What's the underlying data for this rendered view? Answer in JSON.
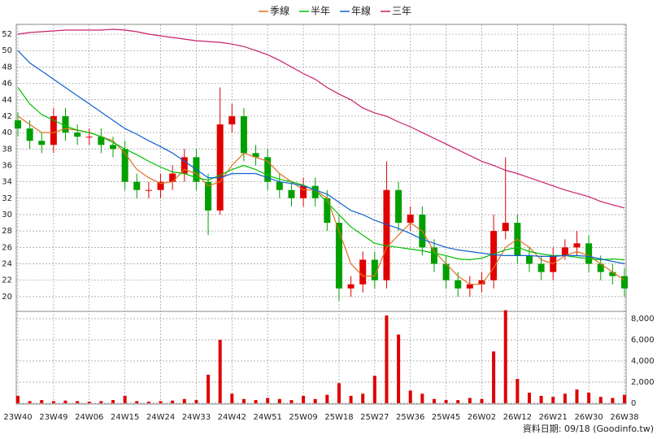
{
  "chart_data": {
    "type": "candlestick",
    "categories": [
      "23W40",
      null,
      null,
      "23W49",
      null,
      null,
      "24W06",
      null,
      null,
      "24W15",
      null,
      null,
      "24W24",
      null,
      null,
      "24W33",
      null,
      null,
      "24W42",
      null,
      null,
      "24W51",
      null,
      null,
      "25W09",
      null,
      null,
      "25W18",
      null,
      null,
      "25W27",
      null,
      null,
      "25W36",
      null,
      null,
      "25W45",
      null,
      null,
      "26W02",
      null,
      null,
      "26W12",
      null,
      null,
      "26W21",
      null,
      null,
      "26W30",
      null,
      null,
      "26W38"
    ],
    "open": [
      41.5,
      40.5,
      39,
      38.5,
      42,
      40,
      39.5,
      39.5,
      38.5,
      38,
      34,
      33,
      33,
      34,
      35,
      37,
      34,
      30.5,
      41,
      42,
      37.5,
      37,
      34,
      33,
      32,
      33.5,
      32,
      29,
      21,
      21.5,
      24.5,
      22,
      33,
      29,
      30,
      26,
      24,
      22,
      21,
      21.5,
      22,
      28,
      29,
      25,
      24,
      23,
      25,
      26,
      26.5,
      24,
      23,
      22.5
    ],
    "high": [
      42.5,
      41.5,
      40,
      43,
      43,
      41,
      40.5,
      40.5,
      39.5,
      39,
      35,
      34,
      35,
      36,
      38,
      38,
      35,
      45.5,
      43.5,
      43,
      38.5,
      38,
      35,
      34,
      34.5,
      34.5,
      33,
      30,
      22.5,
      25.5,
      25.5,
      36.5,
      34,
      31,
      31,
      27,
      25,
      23,
      22.5,
      23,
      30,
      37,
      30,
      26,
      25,
      26,
      27,
      28,
      27.5,
      25,
      24,
      23.5
    ],
    "low": [
      39.5,
      38,
      37.5,
      37.5,
      39,
      38.5,
      38.5,
      37.5,
      37,
      33,
      32,
      32,
      32,
      33,
      34,
      33,
      27.5,
      30,
      40,
      36.5,
      36,
      33,
      32,
      31,
      31,
      31,
      28,
      19.5,
      20,
      20.5,
      21,
      21,
      28,
      28,
      25,
      23,
      21,
      20,
      20,
      20.5,
      21,
      27,
      24,
      23,
      22,
      22,
      24.5,
      25,
      23,
      22,
      21.5,
      20
    ],
    "close": [
      40.5,
      39,
      38.5,
      42,
      40,
      39.5,
      39.5,
      38.5,
      38,
      34,
      33,
      33,
      34,
      35,
      37,
      34,
      30.5,
      41,
      42,
      37.5,
      37,
      34,
      33,
      32,
      33.5,
      32,
      29,
      21,
      21.5,
      24.5,
      22,
      33,
      29,
      30,
      26,
      24,
      22,
      21,
      21.5,
      22,
      28,
      29,
      25,
      24,
      23,
      25,
      26,
      26.5,
      24,
      23,
      22.5,
      21
    ],
    "up_color": "#e00000",
    "down_color": "#00a000",
    "series": [
      {
        "name": "季線",
        "color": "#e07020",
        "values": [
          42,
          41,
          40,
          40,
          40.5,
          40.3,
          40,
          39.5,
          39,
          37.5,
          35.5,
          34.5,
          33.8,
          34,
          35.5,
          35,
          33.5,
          34,
          36,
          37.5,
          37,
          36.5,
          35,
          34,
          33,
          33,
          32,
          28,
          24,
          22.5,
          22.5,
          26,
          27.5,
          29,
          28,
          25.5,
          24,
          22.5,
          21.5,
          21.5,
          23.5,
          26,
          27,
          26,
          24.5,
          24,
          25,
          25.5,
          25,
          24,
          23,
          22
        ]
      },
      {
        "name": "半年",
        "color": "#00c000",
        "values": [
          45.5,
          43.5,
          42.2,
          41.5,
          40.8,
          40.3,
          40,
          39.5,
          38.8,
          38,
          37.3,
          36.5,
          35.8,
          35.2,
          35,
          34.5,
          34.2,
          34.8,
          35.5,
          36,
          35.5,
          34.8,
          34.3,
          34,
          33.6,
          33,
          31.5,
          30,
          28.5,
          27.5,
          26.5,
          26.2,
          26,
          25.8,
          25.6,
          25.3,
          25,
          24.6,
          24.5,
          24.7,
          25.2,
          25.7,
          26,
          25.5,
          25.2,
          25,
          25,
          24.8,
          24.6,
          24.5,
          24.6,
          24.5
        ]
      },
      {
        "name": "年線",
        "color": "#1060d0",
        "values": [
          50,
          48.5,
          47.5,
          46.5,
          45.5,
          44.5,
          43.5,
          42.5,
          41.5,
          40.5,
          39.8,
          39,
          38.3,
          37.5,
          36.5,
          35.5,
          34.5,
          34.5,
          35,
          35,
          35,
          34.5,
          34,
          33.8,
          33.5,
          33,
          32.5,
          31.5,
          30.5,
          30,
          29.3,
          28.8,
          28.3,
          27.7,
          27,
          26.5,
          26,
          25.7,
          25.5,
          25.3,
          25.1,
          25,
          25,
          25,
          24.9,
          24.9,
          25,
          25,
          24.9,
          24.6,
          24.3,
          24
        ]
      },
      {
        "name": "三年",
        "color": "#c8206a",
        "values": [
          52,
          52.2,
          52.3,
          52.4,
          52.5,
          52.5,
          52.5,
          52.5,
          52.6,
          52.5,
          52.3,
          52,
          51.8,
          51.6,
          51.4,
          51.2,
          51.1,
          51,
          50.8,
          50.5,
          50,
          49.5,
          48.8,
          48,
          47.2,
          46.5,
          45.5,
          44.7,
          44,
          43,
          42.4,
          42,
          41.3,
          40.7,
          40,
          39.3,
          38.6,
          37.9,
          37.2,
          36.5,
          36,
          35.4,
          35,
          34.5,
          34,
          33.5,
          33,
          32.6,
          32.2,
          31.6,
          31.2,
          30.8
        ]
      }
    ],
    "volume": {
      "color": "#e00000",
      "axis": "y2",
      "values": [
        700,
        200,
        300,
        200,
        250,
        200,
        150,
        200,
        300,
        700,
        200,
        150,
        200,
        250,
        400,
        300,
        2700,
        6000,
        900,
        400,
        300,
        500,
        400,
        300,
        700,
        400,
        800,
        1900,
        700,
        900,
        2600,
        8300,
        6500,
        1200,
        900,
        400,
        300,
        300,
        500,
        400,
        4900,
        8800,
        2300,
        1000,
        700,
        600,
        900,
        1300,
        1000,
        600,
        500,
        800
      ]
    },
    "ylim": [
      18.5,
      52.5
    ],
    "yticks": [
      20,
      22,
      24,
      26,
      28,
      30,
      32,
      34,
      36,
      38,
      40,
      42,
      44,
      46,
      48,
      50,
      52
    ],
    "y2lim": [
      0,
      8500
    ],
    "y2ticks": [
      0,
      {
        "value": 2000,
        "label": "2,000"
      },
      {
        "value": 4000,
        "label": "4,000"
      },
      {
        "value": 6000,
        "label": "6,000"
      },
      {
        "value": 8000,
        "label": "8,000"
      }
    ],
    "grid": true,
    "source": "資料日期: 09/18 (Goodinfo.tw)"
  }
}
